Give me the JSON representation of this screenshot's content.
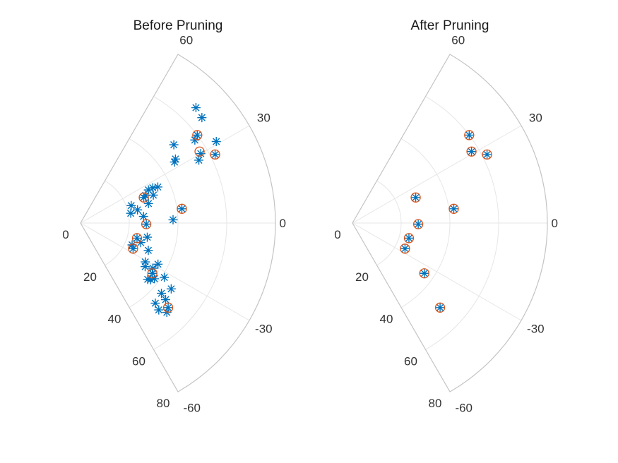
{
  "chart_data": [
    {
      "type": "scatter",
      "coordinate_system": "polar",
      "title": "Before Pruning",
      "theta_ticks": [
        "60",
        "30",
        "0",
        "-30",
        "-60"
      ],
      "r_ticks": [
        "0",
        "20",
        "40",
        "60",
        "80"
      ],
      "theta_range_deg": [
        -60,
        60
      ],
      "r_range": [
        0,
        80
      ],
      "grid": true,
      "series": [
        {
          "marker": "asterisk",
          "color": "#0072BD",
          "points": [
            {
              "theta": 45,
              "r": 67
            },
            {
              "theta": 41,
              "r": 66
            },
            {
              "theta": 40,
              "r": 50
            },
            {
              "theta": 37,
              "r": 60
            },
            {
              "theta": 36,
              "r": 58
            },
            {
              "theta": 34,
              "r": 47
            },
            {
              "theta": 33,
              "r": 46
            },
            {
              "theta": 31,
              "r": 65
            },
            {
              "theta": 30,
              "r": 57
            },
            {
              "theta": 28,
              "r": 55
            },
            {
              "theta": 27,
              "r": 62
            },
            {
              "theta": 26,
              "r": 31
            },
            {
              "theta": 26,
              "r": 33
            },
            {
              "theta": 25,
              "r": 35
            },
            {
              "theta": 23,
              "r": 29
            },
            {
              "theta": 22,
              "r": 28
            },
            {
              "theta": 21,
              "r": 32
            },
            {
              "theta": 19,
              "r": 22
            },
            {
              "theta": 16,
              "r": 29
            },
            {
              "theta": 13,
              "r": 24
            },
            {
              "theta": 11,
              "r": 21
            },
            {
              "theta": 8,
              "r": 42
            },
            {
              "theta": 6,
              "r": 26
            },
            {
              "theta": 2,
              "r": 38
            },
            {
              "theta": -1,
              "r": 27
            },
            {
              "theta": -12,
              "r": 28
            },
            {
              "theta": -15,
              "r": 24
            },
            {
              "theta": -18,
              "r": 26
            },
            {
              "theta": -22,
              "r": 30
            },
            {
              "theta": -23,
              "r": 23
            },
            {
              "theta": -26,
              "r": 24
            },
            {
              "theta": -28,
              "r": 36
            },
            {
              "theta": -31,
              "r": 31
            },
            {
              "theta": -32,
              "r": 35
            },
            {
              "theta": -33,
              "r": 41
            },
            {
              "theta": -34,
              "r": 32
            },
            {
              "theta": -35,
              "r": 36
            },
            {
              "theta": -36,
              "r": 46
            },
            {
              "theta": -37,
              "r": 38
            },
            {
              "theta": -39,
              "r": 37
            },
            {
              "theta": -40,
              "r": 36
            },
            {
              "theta": -41,
              "r": 44
            },
            {
              "theta": -42,
              "r": 47
            },
            {
              "theta": -44,
              "r": 50
            },
            {
              "theta": -46,
              "r": 51
            },
            {
              "theta": -47,
              "r": 45
            },
            {
              "theta": -48,
              "r": 48
            }
          ]
        },
        {
          "marker": "circle",
          "color": "#D95319",
          "points": [
            {
              "theta": 37,
              "r": 60
            },
            {
              "theta": 27,
              "r": 62
            },
            {
              "theta": 31,
              "r": 57
            },
            {
              "theta": 22,
              "r": 28
            },
            {
              "theta": 8,
              "r": 42
            },
            {
              "theta": -1,
              "r": 27
            },
            {
              "theta": -15,
              "r": 24
            },
            {
              "theta": -26,
              "r": 24
            },
            {
              "theta": -35,
              "r": 36
            },
            {
              "theta": -44,
              "r": 50
            }
          ]
        }
      ]
    },
    {
      "type": "scatter",
      "coordinate_system": "polar",
      "title": "After Pruning",
      "theta_ticks": [
        "60",
        "30",
        "0",
        "-30",
        "-60"
      ],
      "r_ticks": [
        "0",
        "20",
        "40",
        "60",
        "80"
      ],
      "theta_range_deg": [
        -60,
        60
      ],
      "r_range": [
        0,
        80
      ],
      "grid": true,
      "series": [
        {
          "marker": "asterisk",
          "color": "#0072BD",
          "points": [
            {
              "theta": 37,
              "r": 60
            },
            {
              "theta": 27,
              "r": 62
            },
            {
              "theta": 31,
              "r": 57
            },
            {
              "theta": 22,
              "r": 28
            },
            {
              "theta": 8,
              "r": 42
            },
            {
              "theta": -1,
              "r": 27
            },
            {
              "theta": -15,
              "r": 24
            },
            {
              "theta": -26,
              "r": 24
            },
            {
              "theta": -35,
              "r": 36
            },
            {
              "theta": -44,
              "r": 50
            }
          ]
        },
        {
          "marker": "circle",
          "color": "#D95319",
          "points": [
            {
              "theta": 37,
              "r": 60
            },
            {
              "theta": 27,
              "r": 62
            },
            {
              "theta": 31,
              "r": 57
            },
            {
              "theta": 22,
              "r": 28
            },
            {
              "theta": 8,
              "r": 42
            },
            {
              "theta": -1,
              "r": 27
            },
            {
              "theta": -15,
              "r": 24
            },
            {
              "theta": -26,
              "r": 24
            },
            {
              "theta": -35,
              "r": 36
            },
            {
              "theta": -44,
              "r": 50
            }
          ]
        }
      ]
    }
  ]
}
